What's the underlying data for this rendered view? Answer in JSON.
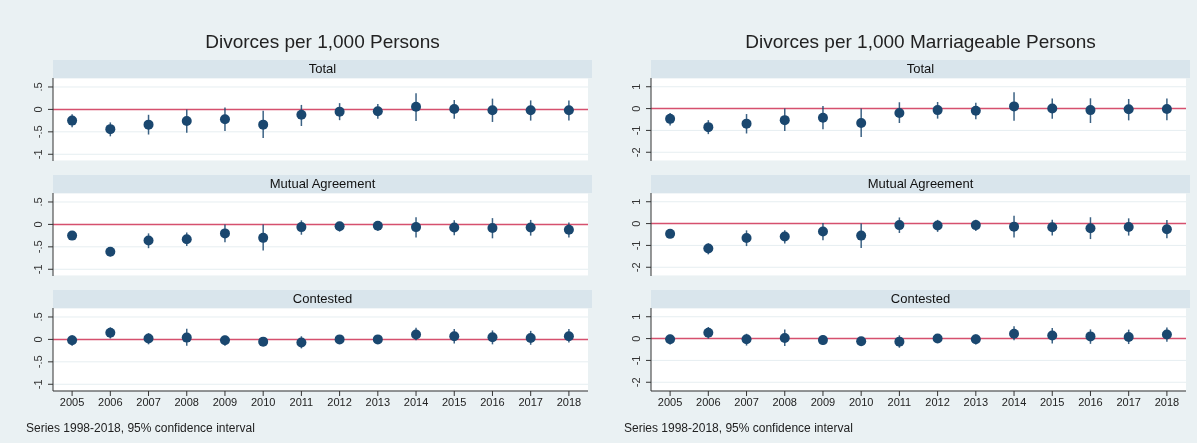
{
  "chart_data": [
    {
      "type": "scatter",
      "title": "Divorces per 1,000 Persons",
      "subtitle": "Total",
      "x": [
        2005,
        2006,
        2007,
        2008,
        2009,
        2010,
        2011,
        2012,
        2013,
        2014,
        2015,
        2016,
        2017,
        2018
      ],
      "color": "#1a476f",
      "marker": "circle",
      "grid": "y",
      "tick_labels": "y",
      "xlim": [
        2004.5,
        2018.5
      ],
      "ylim": [
        -1.15,
        0.7
      ],
      "yticks": [
        {
          "value": -1,
          "label": "-1"
        },
        {
          "value": -0.5,
          "label": "-.5"
        },
        0,
        {
          "value": 0.5,
          "label": ".5"
        }
      ],
      "ref_lines": [
        {
          "axis": "y",
          "value": 0,
          "color": "#d6506e"
        }
      ],
      "values": [
        -0.25,
        -0.44,
        -0.34,
        -0.26,
        -0.22,
        -0.34,
        -0.12,
        -0.05,
        -0.04,
        0.06,
        0.01,
        -0.02,
        -0.02,
        -0.02
      ],
      "errors": [
        [
          -0.4,
          -0.11
        ],
        [
          -0.6,
          -0.29
        ],
        [
          -0.56,
          -0.12
        ],
        [
          -0.52,
          0
        ],
        [
          -0.48,
          0.04
        ],
        [
          -0.64,
          -0.03
        ],
        [
          -0.37,
          0.1
        ],
        [
          -0.24,
          0.14
        ],
        [
          -0.21,
          0.12
        ],
        [
          -0.26,
          0.36
        ],
        [
          -0.21,
          0.21
        ],
        [
          -0.28,
          0.24
        ],
        [
          -0.25,
          0.2
        ],
        [
          -0.25,
          0.2
        ]
      ]
    },
    {
      "type": "scatter",
      "subtitle": "Mutual Agreement",
      "x": [
        2005,
        2006,
        2007,
        2008,
        2009,
        2010,
        2011,
        2012,
        2013,
        2014,
        2015,
        2016,
        2017,
        2018
      ],
      "color": "#1a476f",
      "marker": "circle",
      "grid": "y",
      "tick_labels": "y",
      "xlim": [
        2004.5,
        2018.5
      ],
      "ylim": [
        -1.15,
        0.7
      ],
      "yticks": [
        {
          "value": -1,
          "label": "-1"
        },
        {
          "value": -0.5,
          "label": "-.5"
        },
        0,
        {
          "value": 0.5,
          "label": ".5"
        }
      ],
      "ref_lines": [
        {
          "axis": "y",
          "value": 0,
          "color": "#d6506e"
        }
      ],
      "values": [
        -0.25,
        -0.61,
        -0.36,
        -0.33,
        -0.2,
        -0.3,
        -0.06,
        -0.04,
        -0.03,
        -0.06,
        -0.07,
        -0.08,
        -0.07,
        -0.12
      ],
      "errors": [
        [
          -0.28,
          -0.22
        ],
        [
          -0.71,
          -0.52
        ],
        [
          -0.53,
          -0.2
        ],
        [
          -0.48,
          -0.18
        ],
        [
          -0.4,
          0
        ],
        [
          -0.58,
          0
        ],
        [
          -0.23,
          0.09
        ],
        [
          -0.16,
          0.05
        ],
        [
          -0.14,
          0.05
        ],
        [
          -0.29,
          0.16
        ],
        [
          -0.24,
          0.09
        ],
        [
          -0.31,
          0.14
        ],
        [
          -0.25,
          0.1
        ],
        [
          -0.29,
          0.04
        ]
      ]
    },
    {
      "type": "scatter",
      "subtitle": "Contested",
      "x": [
        2005,
        2006,
        2007,
        2008,
        2009,
        2010,
        2011,
        2012,
        2013,
        2014,
        2015,
        2016,
        2017,
        2018
      ],
      "color": "#1a476f",
      "marker": "circle",
      "grid": "y",
      "xlim": [
        2004.5,
        2018.5
      ],
      "xticks": [
        2005,
        2006,
        2007,
        2008,
        2009,
        2010,
        2011,
        2012,
        2013,
        2014,
        2015,
        2016,
        2017,
        2018
      ],
      "ylim": [
        -1.15,
        0.7
      ],
      "yticks": [
        {
          "value": -1,
          "label": "-1"
        },
        {
          "value": -0.5,
          "label": "-.5"
        },
        0,
        {
          "value": 0.5,
          "label": ".5"
        }
      ],
      "ref_lines": [
        {
          "axis": "y",
          "value": 0,
          "color": "#d6506e"
        }
      ],
      "annotations": [
        "Series 1998-2018, 95% confidence interval"
      ],
      "values": [
        -0.02,
        0.15,
        0.02,
        0.04,
        -0.02,
        -0.05,
        -0.07,
        0,
        0,
        0.11,
        0.07,
        0.05,
        0.03,
        0.07
      ],
      "errors": [
        [
          -0.14,
          0.09
        ],
        [
          0.02,
          0.27
        ],
        [
          -0.11,
          0.14
        ],
        [
          -0.14,
          0.24
        ],
        [
          -0.14,
          0.08
        ],
        [
          -0.13,
          0.04
        ],
        [
          -0.2,
          0.07
        ],
        [
          -0.08,
          0.07
        ],
        [
          -0.1,
          0.09
        ],
        [
          -0.02,
          0.26
        ],
        [
          -0.09,
          0.23
        ],
        [
          -0.11,
          0.2
        ],
        [
          -0.12,
          0.19
        ],
        [
          -0.07,
          0.23
        ]
      ]
    },
    {
      "type": "scatter",
      "title": "Divorces per 1,000 Marriageable Persons",
      "subtitle": "Total",
      "x": [
        2005,
        2006,
        2007,
        2008,
        2009,
        2010,
        2011,
        2012,
        2013,
        2014,
        2015,
        2016,
        2017,
        2018
      ],
      "color": "#1a476f",
      "marker": "circle",
      "grid": "y",
      "tick_labels": "y",
      "xlim": [
        2004.5,
        2018.5
      ],
      "ylim": [
        -2.4,
        1.4
      ],
      "yticks": [
        -2,
        -1,
        0,
        1
      ],
      "ref_lines": [
        {
          "axis": "y",
          "value": 0,
          "color": "#d6506e"
        }
      ],
      "values": [
        -0.47,
        -0.85,
        -0.69,
        -0.53,
        -0.42,
        -0.66,
        -0.2,
        -0.07,
        -0.1,
        0.1,
        0,
        -0.07,
        -0.03,
        -0.02
      ],
      "errors": [
        [
          -0.78,
          -0.2
        ],
        [
          -1.17,
          -0.53
        ],
        [
          -1.14,
          -0.25
        ],
        [
          -1.03,
          0
        ],
        [
          -0.95,
          0.12
        ],
        [
          -1.3,
          0
        ],
        [
          -0.66,
          0.29
        ],
        [
          -0.46,
          0.3
        ],
        [
          -0.49,
          0.27
        ],
        [
          -0.56,
          0.75
        ],
        [
          -0.47,
          0.46
        ],
        [
          -0.66,
          0.47
        ],
        [
          -0.54,
          0.44
        ],
        [
          -0.54,
          0.46
        ]
      ]
    },
    {
      "type": "scatter",
      "subtitle": "Mutual Agreement",
      "x": [
        2005,
        2006,
        2007,
        2008,
        2009,
        2010,
        2011,
        2012,
        2013,
        2014,
        2015,
        2016,
        2017,
        2018
      ],
      "color": "#1a476f",
      "marker": "circle",
      "grid": "y",
      "tick_labels": "y",
      "xlim": [
        2004.5,
        2018.5
      ],
      "ylim": [
        -2.4,
        1.4
      ],
      "yticks": [
        -2,
        -1,
        0,
        1
      ],
      "ref_lines": [
        {
          "axis": "y",
          "value": 0,
          "color": "#d6506e"
        }
      ],
      "values": [
        -0.47,
        -1.14,
        -0.66,
        -0.59,
        -0.36,
        -0.55,
        -0.07,
        -0.09,
        -0.07,
        -0.14,
        -0.17,
        -0.21,
        -0.16,
        -0.26
      ],
      "errors": [
        [
          -0.52,
          -0.42
        ],
        [
          -1.41,
          -0.9
        ],
        [
          -1.03,
          -0.31
        ],
        [
          -0.91,
          -0.31
        ],
        [
          -0.76,
          0.03
        ],
        [
          -1.12,
          0
        ],
        [
          -0.43,
          0.28
        ],
        [
          -0.38,
          0.17
        ],
        [
          -0.34,
          0.17
        ],
        [
          -0.64,
          0.36
        ],
        [
          -0.55,
          0.17
        ],
        [
          -0.71,
          0.29
        ],
        [
          -0.55,
          0.24
        ],
        [
          -0.67,
          0.16
        ]
      ]
    },
    {
      "type": "scatter",
      "subtitle": "Contested",
      "x": [
        2005,
        2006,
        2007,
        2008,
        2009,
        2010,
        2011,
        2012,
        2013,
        2014,
        2015,
        2016,
        2017,
        2018
      ],
      "color": "#1a476f",
      "marker": "circle",
      "grid": "y",
      "xlim": [
        2004.5,
        2018.5
      ],
      "xticks": [
        2005,
        2006,
        2007,
        2008,
        2009,
        2010,
        2011,
        2012,
        2013,
        2014,
        2015,
        2016,
        2017,
        2018
      ],
      "ylim": [
        -2.4,
        1.4
      ],
      "yticks": [
        -2,
        -1,
        0,
        1
      ],
      "ref_lines": [
        {
          "axis": "y",
          "value": 0,
          "color": "#d6506e"
        }
      ],
      "annotations": [
        "Series 1998-2018, 95% confidence interval"
      ],
      "values": [
        -0.03,
        0.27,
        -0.03,
        0.03,
        -0.07,
        -0.12,
        -0.14,
        0,
        -0.03,
        0.22,
        0.14,
        0.1,
        0.07,
        0.19
      ],
      "errors": [
        [
          -0.27,
          0.17
        ],
        [
          0,
          0.53
        ],
        [
          -0.32,
          0.22
        ],
        [
          -0.34,
          0.42
        ],
        [
          -0.29,
          0.15
        ],
        [
          -0.29,
          0.05
        ],
        [
          -0.42,
          0.15
        ],
        [
          -0.19,
          0.19
        ],
        [
          -0.27,
          0.19
        ],
        [
          -0.08,
          0.56
        ],
        [
          -0.22,
          0.49
        ],
        [
          -0.24,
          0.42
        ],
        [
          -0.25,
          0.41
        ],
        [
          -0.14,
          0.51
        ]
      ]
    }
  ]
}
